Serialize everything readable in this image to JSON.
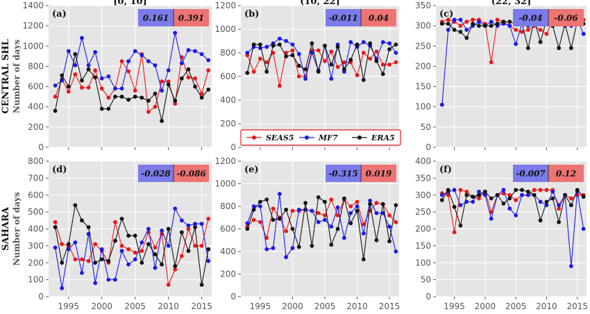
{
  "colors": {
    "SEAS5": "#e8191a",
    "MF7": "#1a1ae8",
    "ERA5": "#111111",
    "box_blue": "#7b7bea",
    "box_red": "#ee7474",
    "panel_bg": "#e5e5e5"
  },
  "column_titles": [
    "[0, 10]",
    "(10, 22]",
    "(22, 32]"
  ],
  "row_labels": [
    "CENTRAL SHL",
    "SAHARA"
  ],
  "ylabel": "Number of days",
  "legend": [
    "SEAS5",
    "MF7",
    "ERA5"
  ],
  "chart_data": [
    {
      "type": "line",
      "label": "(a)",
      "row": 0,
      "col": 0,
      "ylim": [
        0,
        1400
      ],
      "yticks": [
        0,
        200,
        400,
        600,
        800,
        1000,
        1200,
        1400
      ],
      "xlim": [
        1992,
        2016.5
      ],
      "xticks": [
        1995,
        2000,
        2005,
        2010,
        2015
      ],
      "box": [
        "0.161",
        "0.391"
      ],
      "x": [
        1993,
        1994,
        1995,
        1996,
        1997,
        1998,
        1999,
        2000,
        2001,
        2002,
        2003,
        2004,
        2005,
        2006,
        2007,
        2008,
        2009,
        2010,
        2011,
        2012,
        2013,
        2014,
        2015,
        2016
      ],
      "series": [
        {
          "name": "SEAS5",
          "values": [
            500,
            670,
            550,
            720,
            590,
            590,
            760,
            580,
            490,
            580,
            850,
            750,
            560,
            920,
            350,
            400,
            650,
            650,
            430,
            890,
            690,
            680,
            530,
            760
          ]
        },
        {
          "name": "MF7",
          "values": [
            610,
            660,
            950,
            810,
            1080,
            810,
            940,
            680,
            700,
            580,
            580,
            850,
            950,
            910,
            850,
            810,
            560,
            760,
            1130,
            830,
            960,
            950,
            920,
            860
          ]
        },
        {
          "name": "ERA5",
          "values": [
            360,
            710,
            600,
            920,
            660,
            770,
            690,
            380,
            380,
            500,
            500,
            470,
            500,
            490,
            460,
            530,
            260,
            620,
            460,
            680,
            770,
            600,
            490,
            570
          ]
        }
      ]
    },
    {
      "type": "line",
      "label": "(b)",
      "row": 0,
      "col": 1,
      "ylim": [
        0,
        1200
      ],
      "yticks": [
        0,
        200,
        400,
        600,
        800,
        1000,
        1200
      ],
      "xlim": [
        1992,
        2016.5
      ],
      "xticks": [
        1995,
        2000,
        2005,
        2010,
        2015
      ],
      "box": [
        "-0.011",
        "0.04"
      ],
      "x": [
        1993,
        1994,
        1995,
        1996,
        1997,
        1998,
        1999,
        2000,
        2001,
        2002,
        2003,
        2004,
        2005,
        2006,
        2007,
        2008,
        2009,
        2010,
        2011,
        2012,
        2013,
        2014,
        2015,
        2016
      ],
      "series": [
        {
          "name": "SEAS5",
          "values": [
            780,
            640,
            750,
            720,
            800,
            520,
            800,
            820,
            600,
            600,
            820,
            820,
            730,
            810,
            680,
            720,
            720,
            610,
            800,
            750,
            810,
            700,
            700,
            720
          ]
        },
        {
          "name": "MF7",
          "values": [
            800,
            850,
            840,
            850,
            880,
            920,
            900,
            870,
            790,
            580,
            800,
            650,
            860,
            580,
            870,
            640,
            890,
            850,
            890,
            860,
            750,
            890,
            880,
            800
          ]
        },
        {
          "name": "ERA5",
          "values": [
            630,
            870,
            870,
            640,
            860,
            870,
            770,
            780,
            690,
            660,
            880,
            640,
            860,
            700,
            850,
            660,
            740,
            870,
            570,
            880,
            730,
            620,
            830,
            870
          ]
        }
      ]
    },
    {
      "type": "line",
      "label": "(c)",
      "row": 0,
      "col": 2,
      "ylim": [
        0,
        350
      ],
      "yticks": [
        0,
        50,
        100,
        150,
        200,
        250,
        300,
        350
      ],
      "xlim": [
        1992,
        2016.5
      ],
      "xticks": [
        1995,
        2000,
        2005,
        2010,
        2015
      ],
      "box": [
        "-0.04",
        "-0.06"
      ],
      "x": [
        1993,
        1994,
        1995,
        1996,
        1997,
        1998,
        1999,
        2000,
        2001,
        2002,
        2003,
        2004,
        2005,
        2006,
        2007,
        2008,
        2009,
        2010,
        2011,
        2012,
        2013,
        2014,
        2015,
        2016
      ],
      "series": [
        {
          "name": "SEAS5",
          "values": [
            310,
            315,
            310,
            300,
            310,
            315,
            315,
            305,
            210,
            315,
            310,
            300,
            290,
            285,
            290,
            300,
            290,
            280,
            315,
            305,
            300,
            315,
            310,
            315
          ]
        },
        {
          "name": "MF7",
          "values": [
            105,
            290,
            315,
            315,
            290,
            300,
            310,
            300,
            310,
            300,
            305,
            300,
            255,
            305,
            300,
            315,
            310,
            310,
            300,
            310,
            300,
            300,
            315,
            280
          ]
        },
        {
          "name": "ERA5",
          "values": [
            305,
            305,
            290,
            285,
            270,
            305,
            300,
            300,
            300,
            305,
            310,
            310,
            305,
            305,
            245,
            315,
            260,
            315,
            300,
            245,
            305,
            245,
            310,
            305
          ]
        }
      ]
    },
    {
      "type": "line",
      "label": "(d)",
      "row": 1,
      "col": 0,
      "ylim": [
        0,
        800
      ],
      "yticks": [
        0,
        100,
        200,
        300,
        400,
        500,
        600,
        700,
        800
      ],
      "xlim": [
        1992,
        2016.5
      ],
      "xticks": [
        1995,
        2000,
        2005,
        2010,
        2015
      ],
      "box": [
        "-0.028",
        "-0.086"
      ],
      "x": [
        1993,
        1994,
        1995,
        1996,
        1997,
        1998,
        1999,
        2000,
        2001,
        2002,
        2003,
        2004,
        2005,
        2006,
        2007,
        2008,
        2009,
        2010,
        2011,
        2012,
        2013,
        2014,
        2015,
        2016
      ],
      "series": [
        {
          "name": "SEAS5",
          "values": [
            440,
            310,
            300,
            220,
            220,
            210,
            310,
            270,
            200,
            440,
            300,
            280,
            260,
            270,
            380,
            290,
            370,
            70,
            160,
            240,
            400,
            300,
            300,
            460
          ]
        },
        {
          "name": "MF7",
          "values": [
            290,
            50,
            280,
            320,
            140,
            370,
            80,
            280,
            100,
            100,
            270,
            190,
            220,
            320,
            400,
            170,
            390,
            300,
            520,
            450,
            420,
            430,
            430,
            210
          ]
        },
        {
          "name": "ERA5",
          "values": [
            410,
            200,
            310,
            540,
            450,
            410,
            200,
            220,
            210,
            330,
            460,
            360,
            360,
            200,
            310,
            250,
            190,
            400,
            180,
            380,
            270,
            410,
            70,
            280
          ]
        }
      ]
    },
    {
      "type": "line",
      "label": "(e)",
      "row": 1,
      "col": 1,
      "ylim": [
        0,
        1200
      ],
      "yticks": [
        0,
        200,
        400,
        600,
        800,
        1000,
        1200
      ],
      "xlim": [
        1992,
        2016.5
      ],
      "xticks": [
        1995,
        2000,
        2005,
        2010,
        2015
      ],
      "box": [
        "-0.315",
        "0.019"
      ],
      "x": [
        1993,
        1994,
        1995,
        1996,
        1997,
        1998,
        1999,
        2000,
        2001,
        2002,
        2003,
        2004,
        2005,
        2006,
        2007,
        2008,
        2009,
        2010,
        2011,
        2012,
        2013,
        2014,
        2015,
        2016
      ],
      "series": [
        {
          "name": "SEAS5",
          "values": [
            620,
            680,
            660,
            520,
            780,
            700,
            580,
            760,
            760,
            770,
            760,
            740,
            720,
            860,
            720,
            860,
            800,
            840,
            640,
            760,
            830,
            820,
            720,
            660
          ]
        },
        {
          "name": "MF7",
          "values": [
            650,
            800,
            800,
            420,
            430,
            910,
            350,
            430,
            770,
            770,
            760,
            660,
            680,
            620,
            790,
            520,
            740,
            800,
            560,
            850,
            740,
            740,
            620,
            400
          ]
        },
        {
          "name": "ERA5",
          "values": [
            600,
            770,
            840,
            860,
            680,
            690,
            770,
            600,
            440,
            830,
            450,
            880,
            840,
            460,
            600,
            870,
            650,
            760,
            330,
            820,
            500,
            820,
            490,
            810
          ]
        }
      ]
    },
    {
      "type": "line",
      "label": "(f)",
      "row": 1,
      "col": 2,
      "ylim": [
        0,
        400
      ],
      "yticks": [
        0,
        50,
        100,
        150,
        200,
        250,
        300,
        350,
        400
      ],
      "xlim": [
        1992,
        2016.5
      ],
      "xticks": [
        1995,
        2000,
        2005,
        2010,
        2015
      ],
      "box": [
        "-0.007",
        "0.12"
      ],
      "x": [
        1993,
        1994,
        1995,
        1996,
        1997,
        1998,
        1999,
        2000,
        2001,
        2002,
        2003,
        2004,
        2005,
        2006,
        2007,
        2008,
        2009,
        2010,
        2011,
        2012,
        2013,
        2014,
        2015,
        2016
      ],
      "series": [
        {
          "name": "SEAS5",
          "values": [
            305,
            300,
            190,
            315,
            310,
            295,
            290,
            310,
            250,
            300,
            305,
            300,
            285,
            300,
            300,
            315,
            315,
            315,
            315,
            260,
            300,
            290,
            300,
            300
          ]
        },
        {
          "name": "MF7",
          "values": [
            300,
            310,
            315,
            270,
            280,
            280,
            310,
            300,
            230,
            300,
            315,
            260,
            240,
            300,
            300,
            300,
            280,
            270,
            310,
            270,
            300,
            90,
            310,
            200
          ]
        },
        {
          "name": "ERA5",
          "values": [
            285,
            315,
            265,
            210,
            300,
            295,
            300,
            310,
            290,
            300,
            275,
            290,
            315,
            315,
            310,
            300,
            225,
            280,
            290,
            220,
            300,
            270,
            315,
            295
          ]
        }
      ]
    }
  ]
}
